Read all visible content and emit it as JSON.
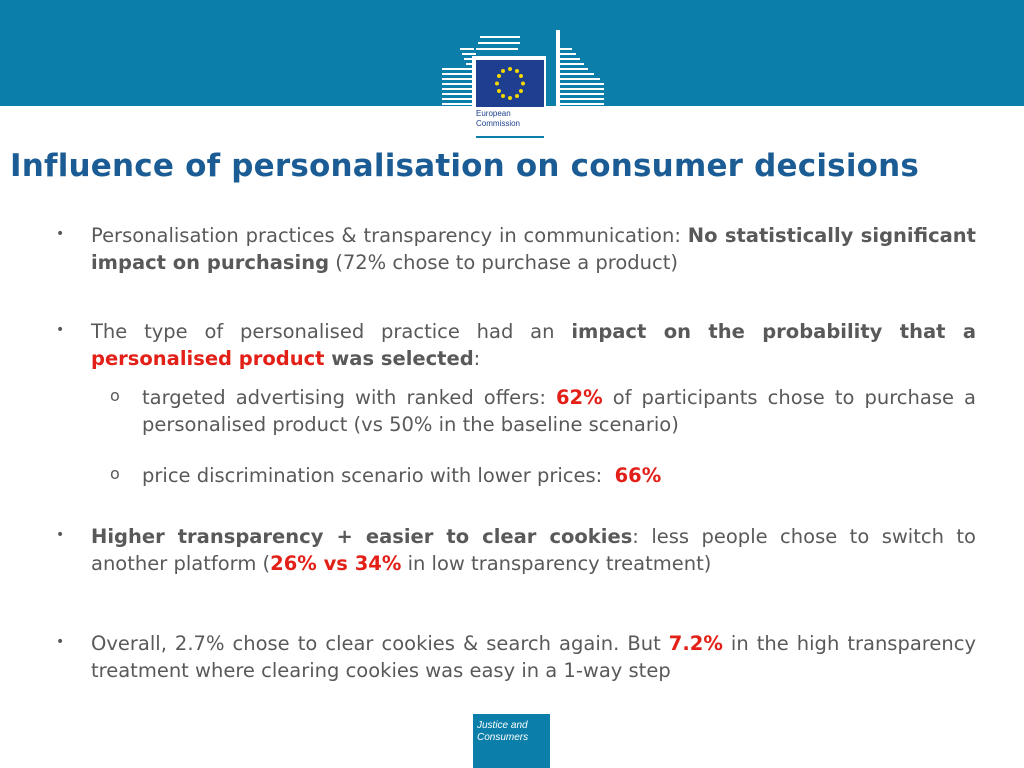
{
  "header": {
    "logo_line1": "European",
    "logo_line2": "Commission"
  },
  "title": "Influence of personalisation on consumer decisions",
  "bullet1": {
    "pre": "Personalisation practices & transparency in communication: ",
    "bold": "No statistically significant impact on purchasing",
    "post": " (72% chose to purchase a product)"
  },
  "bullet2": {
    "pre": "The type of personalised practice had an ",
    "bold1": "impact on the probability that a ",
    "red": "personalised product",
    "bold2": " was selected",
    "post": ":"
  },
  "sub1": {
    "pre": "targeted advertising with ranked offers: ",
    "red": "62%",
    "post": " of participants chose to purchase a personalised product (vs 50% in the baseline scenario)"
  },
  "sub2": {
    "pre": "price discrimination scenario with lower prices:  ",
    "red": "66%"
  },
  "bullet3": {
    "bold": "Higher transparency + easier to clear cookies",
    "mid": ": less people chose to switch to another platform (",
    "red": "26% vs 34%",
    "post": " in low transparency treatment)"
  },
  "bullet4": {
    "pre": "Overall, 2.7% chose to clear cookies & search again. But ",
    "red": "7.2%",
    "post": " in the high transparency treatment where clearing cookies was easy in a 1-way step"
  },
  "footer": {
    "line1": "Justice and",
    "line2": "Consumers"
  },
  "symbols": {
    "bullet": "•",
    "sub_bullet": "o"
  },
  "colors": {
    "band": "#0b7fa9",
    "title": "#1a5c93",
    "body": "#595959",
    "highlight": "#e32017"
  }
}
